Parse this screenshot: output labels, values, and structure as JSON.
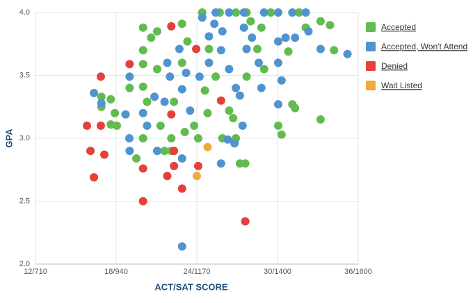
{
  "chart_data": {
    "type": "scatter",
    "x_label": "ACT/SAT SCORE",
    "y_label": "GPA",
    "xlim": [
      12,
      36
    ],
    "ylim": [
      2,
      4
    ],
    "xticks": [
      {
        "value": 12,
        "label": "12/710"
      },
      {
        "value": 18,
        "label": "18/940"
      },
      {
        "value": 24,
        "label": "24/1170"
      },
      {
        "value": 30,
        "label": "30/1400"
      },
      {
        "value": 36,
        "label": "36/1600"
      }
    ],
    "yticks": [
      {
        "value": 2,
        "label": "2.0"
      },
      2.5,
      {
        "value": 3,
        "label": "3.0"
      },
      3.5,
      {
        "value": 4,
        "label": "4.0"
      }
    ],
    "grid": true,
    "legend": "right",
    "series": [
      {
        "name": "Accepted",
        "color": "#62bb4f",
        "x": [
          16.9,
          16.9,
          17.6,
          17.9,
          17.6,
          18.05,
          19.0,
          19.5,
          20.0,
          20.0,
          20.0,
          20.0,
          20.0,
          20.3,
          20.6,
          21.05,
          21.05,
          21.3,
          21.6,
          22.1,
          22.3,
          22.1,
          22.9,
          22.9,
          23.1,
          23.3,
          23.8,
          24.1,
          24.4,
          24.6,
          24.8,
          24.9,
          25.4,
          25.9,
          26.4,
          26.7,
          26.9,
          27.2,
          27.6,
          27.7,
          28.0,
          28.5,
          28.8,
          29.0,
          29.5,
          30.05,
          30.3,
          30.8,
          31.1,
          31.3,
          31.6,
          32.1,
          33.2,
          33.2,
          33.9,
          34.2,
          25.7,
          26.9,
          27.7
        ],
        "values": [
          3.33,
          3.25,
          3.31,
          3.2,
          3.11,
          3.1,
          3.4,
          2.84,
          3.88,
          3.7,
          3.59,
          3.41,
          3.0,
          3.29,
          3.8,
          3.85,
          3.55,
          3.1,
          2.9,
          3.0,
          3.29,
          2.9,
          3.91,
          3.6,
          3.05,
          3.77,
          3.1,
          3.0,
          4.0,
          3.38,
          3.2,
          3.71,
          3.49,
          3.0,
          3.22,
          3.16,
          3.0,
          2.8,
          2.8,
          3.49,
          3.93,
          3.71,
          3.88,
          3.55,
          4.0,
          3.1,
          3.03,
          3.69,
          3.27,
          3.24,
          4.0,
          3.88,
          3.93,
          3.15,
          3.9,
          3.7,
          4.0,
          4.0,
          4.0
        ]
      },
      {
        "name": "Accepted, Won't Attend",
        "color": "#4f94cf",
        "x": [
          16.35,
          16.9,
          18.7,
          19.0,
          18.98,
          19.0,
          20.0,
          20.3,
          20.85,
          21.05,
          21.6,
          21.8,
          22.0,
          22.9,
          22.9,
          22.7,
          22.9,
          23.2,
          23.5,
          24.2,
          24.9,
          24.9,
          25.3,
          25.8,
          26.3,
          26.8,
          27.4,
          25.8,
          26.4,
          26.9,
          27.2,
          27.5,
          28.1,
          28.6,
          28.8,
          29.0,
          30.05,
          30.05,
          30.05,
          30.05,
          30.3,
          30.6,
          31.1,
          31.3,
          32.1,
          32.3,
          33.2,
          35.2,
          25.4,
          26.4,
          27.5,
          24.4,
          25.9,
          27.7
        ],
        "values": [
          3.36,
          3.28,
          3.19,
          3.49,
          3.0,
          2.9,
          3.2,
          3.1,
          3.33,
          2.9,
          3.29,
          3.6,
          3.49,
          2.84,
          2.14,
          3.71,
          3.39,
          3.52,
          3.22,
          3.49,
          3.6,
          3.81,
          3.91,
          2.8,
          2.99,
          2.96,
          3.1,
          3.7,
          3.55,
          3.4,
          3.34,
          3.88,
          3.8,
          3.6,
          3.4,
          4.0,
          4.0,
          3.77,
          3.6,
          3.27,
          3.46,
          3.8,
          4.0,
          3.8,
          4.0,
          3.85,
          3.71,
          3.67,
          4.0,
          4.0,
          4.0,
          3.96,
          3.85,
          3.71
        ]
      },
      {
        "name": "Denied",
        "color": "#e5403a",
        "x": [
          15.83,
          16.86,
          16.86,
          16.09,
          17.12,
          16.35,
          19.0,
          20.0,
          20.0,
          22.1,
          22.1,
          21.8,
          22.3,
          22.9,
          24.1,
          23.95,
          25.8,
          27.6,
          22.3
        ],
        "values": [
          3.1,
          3.49,
          3.1,
          2.9,
          2.87,
          2.69,
          3.59,
          2.76,
          2.5,
          3.89,
          3.19,
          2.7,
          2.78,
          2.6,
          2.78,
          3.71,
          3.3,
          2.34,
          2.9
        ]
      },
      {
        "name": "Wait Listed",
        "color": "#f2a93b",
        "x": [
          24.8,
          24.0
        ],
        "values": [
          2.93,
          2.7
        ]
      }
    ]
  }
}
